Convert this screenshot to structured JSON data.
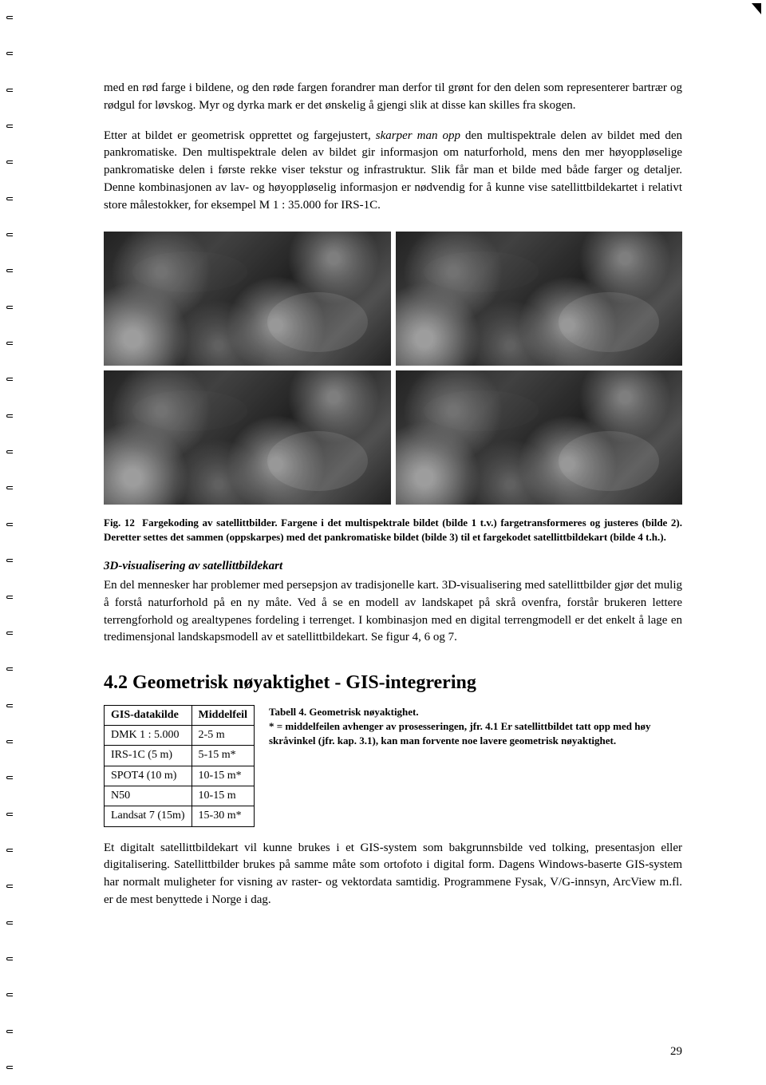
{
  "page": {
    "number": "29"
  },
  "paragraphs": {
    "p1": "med en rød farge i bildene, og den røde fargen forandrer man derfor til grønt for den delen som representerer bartrær og rødgul for løvskog. Myr og dyrka mark er det ønskelig å gjengi slik at disse kan skilles fra skogen.",
    "p2_pre": "Etter at bildet er geometrisk opprettet og fargejustert, ",
    "p2_em": "skarper man opp",
    "p2_post": " den multispektrale delen av bildet med den pankromatiske. Den multispektrale delen av bildet gir informasjon om naturforhold, mens den mer høyoppløselige pankromatiske delen i første rekke viser tekstur og infrastruktur. Slik får man et bilde med både farger og detaljer. Denne kombinasjonen av lav- og høyoppløselig informasjon er nødvendig for å kunne vise satellittbildekartet i relativt store målestokker, for eksempel M 1 : 35.000 for IRS-1C.",
    "p3": "En del mennesker har problemer med persepsjon av tradisjonelle kart. 3D-visualisering med satellittbilder gjør det mulig å forstå naturforhold på en ny måte. Ved å se en modell av landskapet på skrå ovenfra, forstår brukeren lettere terrengforhold og arealtypenes fordeling i terrenget. I kombinasjon med en digital terrengmodell er det enkelt å lage en tredimensjonal landskapsmodell av et satellittbildekart. Se figur 4, 6 og 7.",
    "p4": "Et digitalt satellittbildekart vil kunne brukes i et GIS-system som bakgrunnsbilde ved tolking, presentasjon eller digitalisering. Satellittbilder brukes på samme måte som ortofoto i digital form. Dagens Windows-baserte GIS-system har normalt muligheter for visning av raster- og vektordata samtidig. Programmene Fysak, V/G-innsyn, ArcView m.fl. er de mest benyttede i Norge i dag."
  },
  "figure": {
    "label": "Fig. 12",
    "caption": "Fargekoding av satellittbilder. Fargene i det multispektrale bildet (bilde 1 t.v.) fargetransformeres og justeres (bilde 2). Deretter settes det sammen (oppskarpes) med det pankromatiske bildet (bilde 3) til et fargekodet satellittbildekart (bilde 4 t.h.).",
    "rows": 2,
    "cols": 2,
    "panel_bg": "#2b2b2b"
  },
  "subhead1": "3D-visualisering av satellittbildekart",
  "section": {
    "number": "4.2",
    "title": "Geometrisk nøyaktighet - GIS-integrering"
  },
  "table": {
    "headers": [
      "GIS-datakilde",
      "Middelfeil"
    ],
    "rows": [
      [
        "DMK 1 : 5.000",
        "2-5 m"
      ],
      [
        "IRS-1C (5 m)",
        "5-15 m*"
      ],
      [
        "SPOT4 (10 m)",
        "10-15 m*"
      ],
      [
        "N50",
        "10-15 m"
      ],
      [
        "Landsat 7 (15m)",
        "15-30 m*"
      ]
    ],
    "caption_title": "Tabell 4. Geometrisk nøyaktighet.",
    "caption_body": "* = middelfeilen avhenger av prosesseringen, jfr. 4.1 Er satellittbildet tatt opp med høy skråvinkel (jfr. kap. 3.1), kan man forvente noe lavere geometrisk nøyaktighet."
  },
  "colors": {
    "text": "#000000",
    "bg": "#ffffff",
    "border": "#000000"
  }
}
